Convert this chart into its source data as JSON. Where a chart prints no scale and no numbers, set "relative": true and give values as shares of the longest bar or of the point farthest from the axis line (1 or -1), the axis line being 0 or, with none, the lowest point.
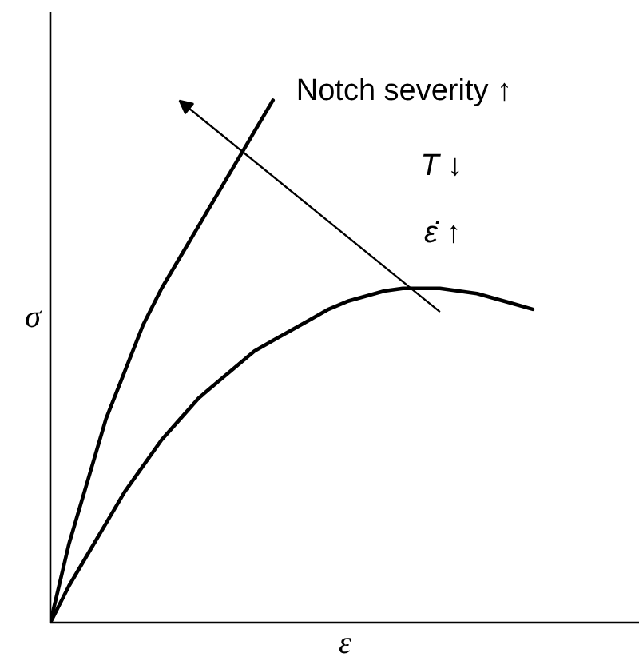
{
  "chart_data": {
    "type": "line",
    "relative": true,
    "xlabel": "ε",
    "ylabel": "σ",
    "tick_labels": false,
    "line_style": "solid",
    "annotations": [
      "Notch severity ↑",
      "T ↓",
      "ε̇ ↑"
    ],
    "categories": [
      null,
      null,
      null,
      null,
      null,
      null,
      null,
      null,
      null,
      null,
      null,
      null,
      null,
      null,
      null,
      null,
      null,
      null,
      null,
      null,
      null,
      null,
      null,
      null,
      null,
      null,
      null
    ],
    "series": [
      {
        "color": "#000000",
        "values": [
          0,
          0.15,
          0.27,
          0.39,
          0.48,
          0.57,
          0.64,
          0.7,
          0.76,
          0.82,
          0.88,
          0.94,
          1.0,
          null,
          null,
          null,
          null,
          null,
          null,
          null,
          null,
          null,
          null,
          null,
          null,
          null,
          null
        ]
      },
      {
        "color": "#000000",
        "values": [
          0,
          0.07,
          0.13,
          0.19,
          0.25,
          0.3,
          0.35,
          0.39,
          0.43,
          0.46,
          0.49,
          0.52,
          0.54,
          0.56,
          0.58,
          0.6,
          0.615,
          0.625,
          0.635,
          0.64,
          0.64,
          0.64,
          0.635,
          0.63,
          0.62,
          0.61,
          0.6
        ]
      }
    ]
  }
}
